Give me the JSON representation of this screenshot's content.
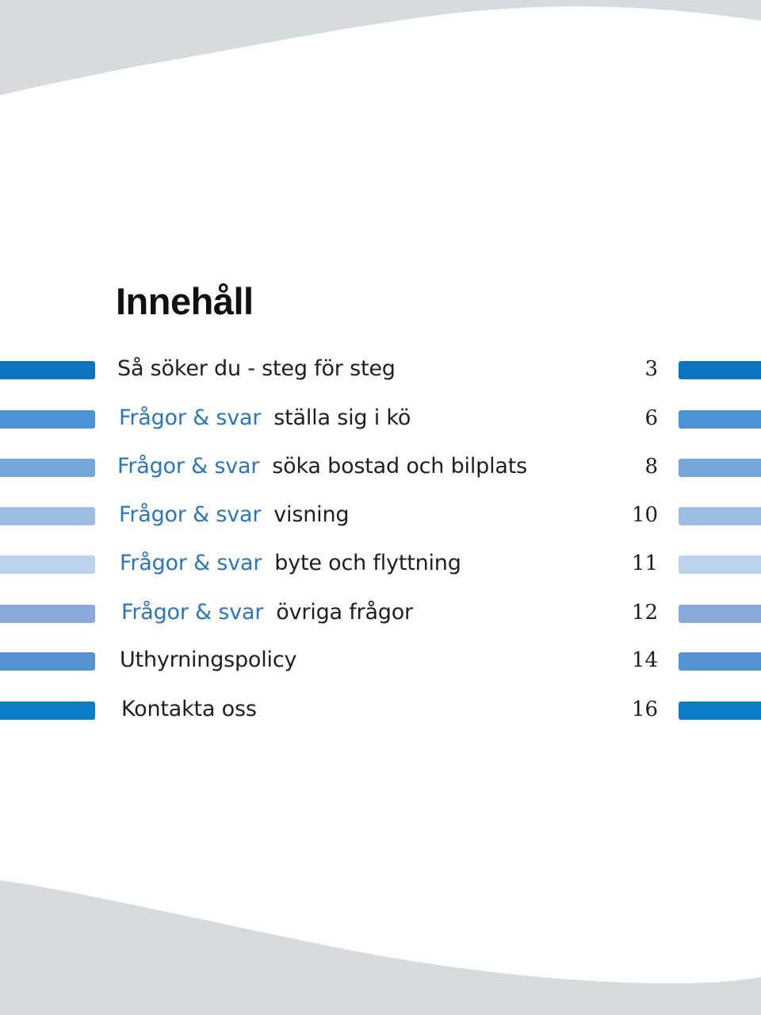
{
  "title": "Innehåll",
  "colors": {
    "wave_gray": "#d9dadd",
    "prefix_blue": "#2a76bd",
    "bar_shades": [
      "#0d75bf",
      "#4a93d4",
      "#77a7da",
      "#9dbde4",
      "#bcd1ee",
      "#8aa9db",
      "#5593d1",
      "#0d7cc6"
    ]
  },
  "toc": [
    {
      "prefix": "",
      "label": "Så söker du - steg för steg",
      "page": "3",
      "bar_color": "#0d75bf"
    },
    {
      "prefix": "Frågor & svar",
      "label": "ställa sig i kö",
      "page": "6",
      "bar_color": "#4a93d4"
    },
    {
      "prefix": "Frågor & svar",
      "label": "söka bostad och bilplats",
      "page": "8",
      "bar_color": "#77a7da"
    },
    {
      "prefix": "Frågor & svar",
      "label": "visning",
      "page": "10",
      "bar_color": "#9dbde4"
    },
    {
      "prefix": "Frågor & svar",
      "label": "byte och flyttning",
      "page": "11",
      "bar_color": "#bcd1ee"
    },
    {
      "prefix": "Frågor & svar",
      "label": "övriga frågor",
      "page": "12",
      "bar_color": "#8aa9db"
    },
    {
      "prefix": "",
      "label": "Uthyrningspolicy",
      "page": "14",
      "bar_color": "#5593d1"
    },
    {
      "prefix": "",
      "label": "Kontakta oss",
      "page": "16",
      "bar_color": "#0d7cc6"
    }
  ]
}
